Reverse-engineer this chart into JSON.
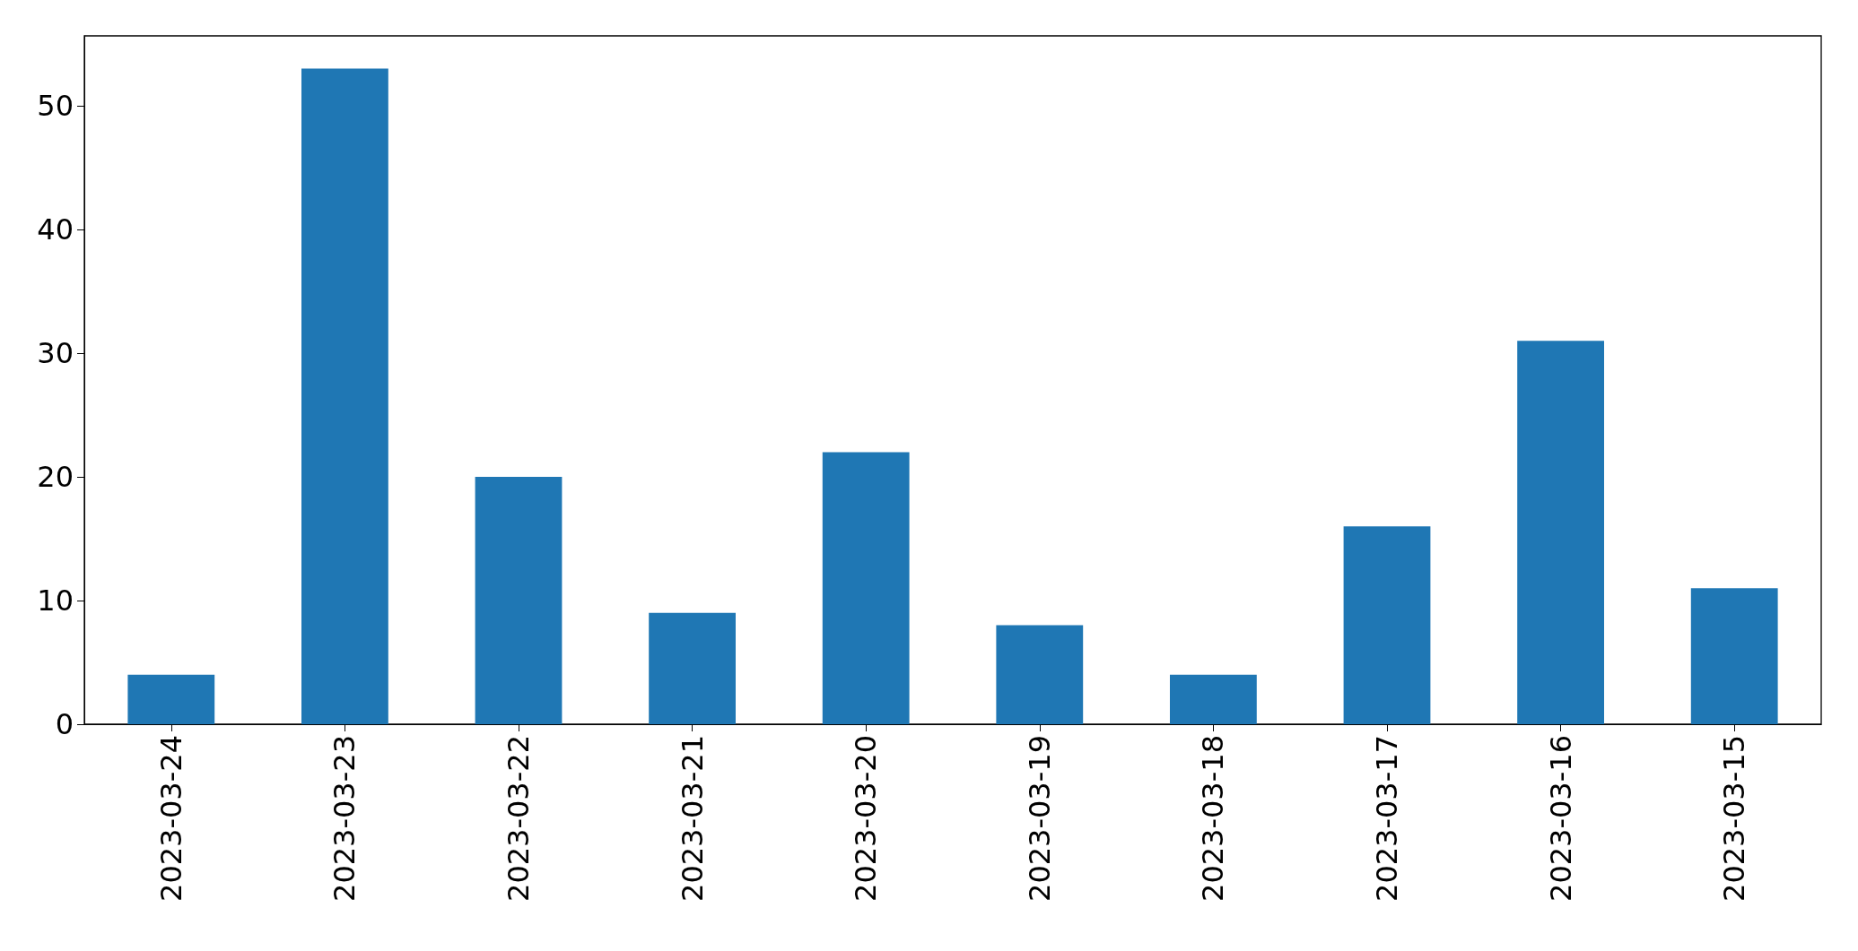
{
  "chart_data": {
    "type": "bar",
    "categories": [
      "2023-03-24",
      "2023-03-23",
      "2023-03-22",
      "2023-03-21",
      "2023-03-20",
      "2023-03-19",
      "2023-03-18",
      "2023-03-17",
      "2023-03-16",
      "2023-03-15"
    ],
    "values": [
      4,
      53,
      20,
      9,
      22,
      8,
      4,
      16,
      31,
      11
    ],
    "color": "#1f77b4",
    "ylim": [
      0,
      55.65
    ],
    "yticks": [
      0,
      10,
      20,
      30,
      40,
      50
    ],
    "grid": false
  }
}
